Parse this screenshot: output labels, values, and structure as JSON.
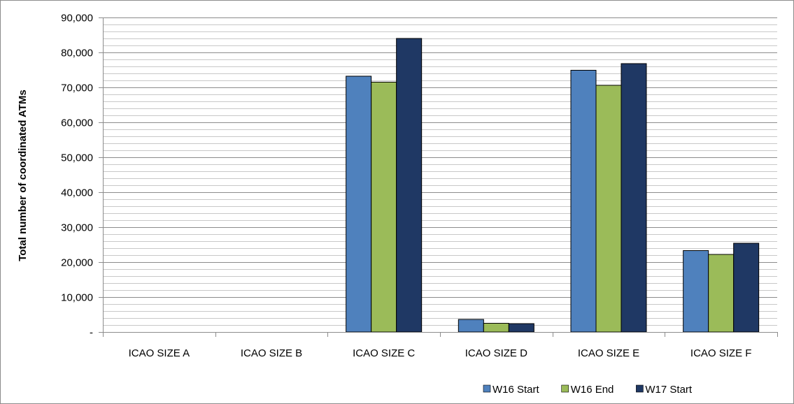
{
  "chart_data": {
    "type": "bar",
    "title": "",
    "xlabel": "",
    "ylabel": "Total number of coordinated ATMs",
    "ylim": [
      0,
      90000
    ],
    "major_step": 10000,
    "minor_step": 2000,
    "grid": true,
    "legend_position": "bottom-right",
    "y_tick_labels": [
      "-",
      "10,000",
      "20,000",
      "30,000",
      "40,000",
      "50,000",
      "60,000",
      "70,000",
      "80,000",
      "90,000"
    ],
    "categories": [
      "ICAO SIZE A",
      "ICAO SIZE B",
      "ICAO SIZE C",
      "ICAO SIZE D",
      "ICAO SIZE E",
      "ICAO SIZE F"
    ],
    "series": [
      {
        "name": "W16 Start",
        "color": "#4f81bd",
        "values": [
          0,
          0,
          73200,
          3600,
          74900,
          23300
        ]
      },
      {
        "name": "W16 End",
        "color": "#9bbb59",
        "values": [
          0,
          0,
          71500,
          2500,
          70600,
          22200
        ]
      },
      {
        "name": "W17 Start",
        "color": "#1f3864",
        "values": [
          0,
          0,
          84000,
          2400,
          76800,
          25400
        ]
      }
    ]
  }
}
